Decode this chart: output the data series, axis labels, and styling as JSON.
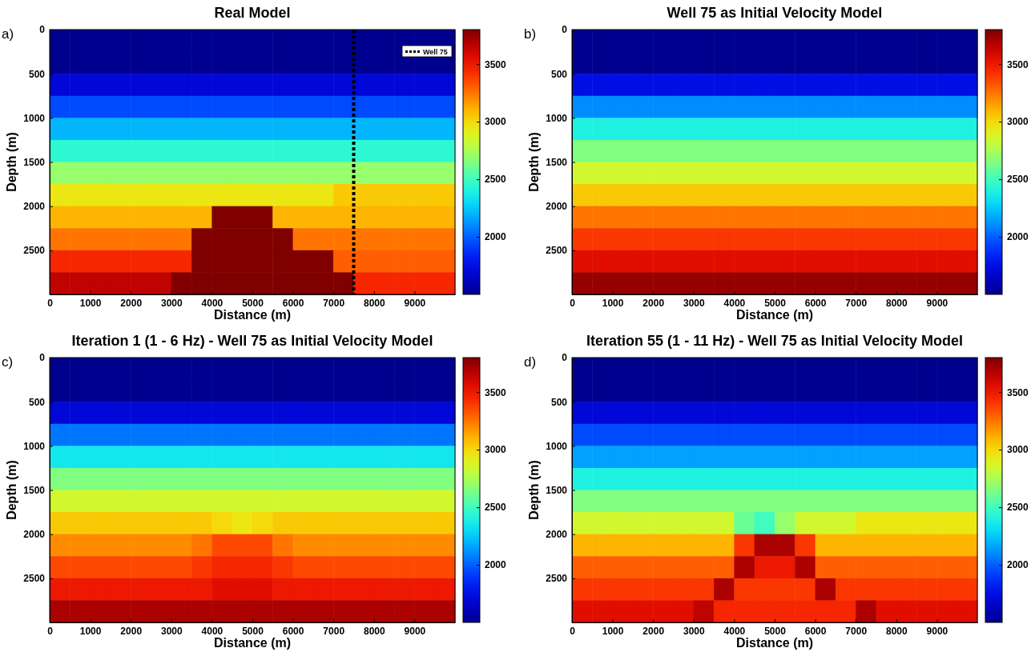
{
  "chart_data": [
    {
      "type": "heatmap",
      "title": "Real Model",
      "xlabel": "Distance (m)",
      "ylabel": "Depth (m)",
      "annotations": [
        "a)"
      ],
      "legend": "top right",
      "ref_lines": [
        {
          "axis": "x",
          "value": 7500,
          "label": "Well 75",
          "color": "#000000",
          "line_style": "dotted"
        }
      ],
      "xlim": [
        0,
        10000
      ],
      "xticks": [
        0,
        1000,
        2000,
        3000,
        4000,
        5000,
        6000,
        7000,
        8000,
        9000
      ],
      "ylim": [
        3000,
        0
      ],
      "yticks": [
        0,
        500,
        1000,
        1500,
        2000,
        2500
      ],
      "clim": [
        1500,
        3800
      ],
      "cticks": [
        2000,
        2500,
        3000,
        3500
      ],
      "cells": [
        [
          1500,
          1500,
          1500,
          1500,
          1500,
          1500,
          1500,
          1500,
          1500,
          1500,
          1500,
          1500,
          1500,
          1500,
          1500,
          1500,
          1500,
          1500,
          1500,
          1500
        ],
        [
          1500,
          1500,
          1500,
          1500,
          1500,
          1500,
          1500,
          1500,
          1500,
          1500,
          1500,
          1500,
          1500,
          1500,
          1500,
          1500,
          1500,
          1500,
          1500,
          1500
        ],
        [
          1700,
          1700,
          1700,
          1700,
          1700,
          1700,
          1700,
          1700,
          1700,
          1700,
          1700,
          1700,
          1700,
          1700,
          1700,
          1700,
          1700,
          1700,
          1700,
          1700
        ],
        [
          1950,
          1950,
          1950,
          1950,
          1950,
          1950,
          1950,
          1950,
          1950,
          1950,
          1950,
          1950,
          1950,
          1950,
          1950,
          1950,
          1950,
          1950,
          1950,
          1950
        ],
        [
          2200,
          2200,
          2200,
          2200,
          2200,
          2200,
          2200,
          2200,
          2200,
          2200,
          2200,
          2200,
          2200,
          2200,
          2200,
          2200,
          2200,
          2200,
          2200,
          2200
        ],
        [
          2450,
          2450,
          2450,
          2450,
          2450,
          2450,
          2450,
          2450,
          2450,
          2450,
          2450,
          2450,
          2450,
          2450,
          2450,
          2450,
          2450,
          2450,
          2450,
          2450
        ],
        [
          2700,
          2700,
          2700,
          2700,
          2700,
          2700,
          2700,
          2700,
          2700,
          2700,
          2700,
          2700,
          2700,
          2700,
          2700,
          2700,
          2700,
          2700,
          2700,
          2700
        ],
        [
          2950,
          2950,
          2950,
          2950,
          2950,
          2950,
          2950,
          2950,
          2950,
          2950,
          2950,
          2950,
          2950,
          2950,
          3050,
          3050,
          3050,
          3050,
          3050,
          3050
        ],
        [
          3100,
          3100,
          3100,
          3100,
          3100,
          3100,
          3100,
          3100,
          3800,
          3800,
          3800,
          3100,
          3100,
          3100,
          3100,
          3100,
          3100,
          3100,
          3100,
          3100
        ],
        [
          3250,
          3250,
          3250,
          3250,
          3250,
          3250,
          3250,
          3800,
          3800,
          3800,
          3800,
          3800,
          3250,
          3250,
          3250,
          3250,
          3250,
          3250,
          3250,
          3250
        ],
        [
          3450,
          3450,
          3450,
          3450,
          3450,
          3450,
          3450,
          3800,
          3800,
          3800,
          3800,
          3800,
          3800,
          3800,
          3300,
          3300,
          3300,
          3300,
          3300,
          3300
        ],
        [
          3650,
          3650,
          3650,
          3650,
          3650,
          3650,
          3800,
          3800,
          3800,
          3800,
          3800,
          3800,
          3800,
          3800,
          3800,
          3450,
          3450,
          3450,
          3450,
          3450
        ]
      ]
    },
    {
      "type": "heatmap",
      "title": "Well 75 as Initial Velocity Model",
      "xlabel": "Distance (m)",
      "ylabel": "Depth (m)",
      "annotations": [
        "b)"
      ],
      "xlim": [
        0,
        10000
      ],
      "xticks": [
        0,
        1000,
        2000,
        3000,
        4000,
        5000,
        6000,
        7000,
        8000,
        9000
      ],
      "ylim": [
        3000,
        0
      ],
      "yticks": [
        0,
        500,
        1000,
        1500,
        2000,
        2500
      ],
      "clim": [
        1500,
        3800
      ],
      "cticks": [
        2000,
        2500,
        3000,
        3500
      ],
      "cells": [
        [
          1500,
          1500,
          1500,
          1500,
          1500,
          1500,
          1500,
          1500,
          1500,
          1500,
          1500,
          1500,
          1500,
          1500,
          1500,
          1500,
          1500,
          1500,
          1500,
          1500
        ],
        [
          1500,
          1500,
          1500,
          1500,
          1500,
          1500,
          1500,
          1500,
          1500,
          1500,
          1500,
          1500,
          1500,
          1500,
          1500,
          1500,
          1500,
          1500,
          1500,
          1500
        ],
        [
          1750,
          1750,
          1750,
          1750,
          1750,
          1750,
          1750,
          1750,
          1750,
          1750,
          1750,
          1750,
          1750,
          1750,
          1750,
          1750,
          1750,
          1750,
          1750,
          1750
        ],
        [
          2100,
          2100,
          2100,
          2100,
          2100,
          2100,
          2100,
          2100,
          2100,
          2100,
          2100,
          2100,
          2100,
          2100,
          2100,
          2100,
          2100,
          2100,
          2100,
          2100
        ],
        [
          2400,
          2400,
          2400,
          2400,
          2400,
          2400,
          2400,
          2400,
          2400,
          2400,
          2400,
          2400,
          2400,
          2400,
          2400,
          2400,
          2400,
          2400,
          2400,
          2400
        ],
        [
          2650,
          2650,
          2650,
          2650,
          2650,
          2650,
          2650,
          2650,
          2650,
          2650,
          2650,
          2650,
          2650,
          2650,
          2650,
          2650,
          2650,
          2650,
          2650,
          2650
        ],
        [
          2850,
          2850,
          2850,
          2850,
          2850,
          2850,
          2850,
          2850,
          2850,
          2850,
          2850,
          2850,
          2850,
          2850,
          2850,
          2850,
          2850,
          2850,
          2850,
          2850
        ],
        [
          3050,
          3050,
          3050,
          3050,
          3050,
          3050,
          3050,
          3050,
          3050,
          3050,
          3050,
          3050,
          3050,
          3050,
          3050,
          3050,
          3050,
          3050,
          3050,
          3050
        ],
        [
          3250,
          3250,
          3250,
          3250,
          3250,
          3250,
          3250,
          3250,
          3250,
          3250,
          3250,
          3250,
          3250,
          3250,
          3250,
          3250,
          3250,
          3250,
          3250,
          3250
        ],
        [
          3400,
          3400,
          3400,
          3400,
          3400,
          3400,
          3400,
          3400,
          3400,
          3400,
          3400,
          3400,
          3400,
          3400,
          3400,
          3400,
          3400,
          3400,
          3400,
          3400
        ],
        [
          3550,
          3550,
          3550,
          3550,
          3550,
          3550,
          3550,
          3550,
          3550,
          3550,
          3550,
          3550,
          3550,
          3550,
          3550,
          3550,
          3550,
          3550,
          3550,
          3550
        ],
        [
          3750,
          3750,
          3750,
          3750,
          3750,
          3750,
          3750,
          3750,
          3750,
          3750,
          3750,
          3750,
          3750,
          3750,
          3750,
          3750,
          3750,
          3750,
          3750,
          3750
        ]
      ]
    },
    {
      "type": "heatmap",
      "title": "Iteration 1 (1 - 6 Hz) - Well 75 as Initial Velocity Model",
      "xlabel": "Distance (m)",
      "ylabel": "Depth (m)",
      "annotations": [
        "c)"
      ],
      "xlim": [
        0,
        10000
      ],
      "xticks": [
        0,
        1000,
        2000,
        3000,
        4000,
        5000,
        6000,
        7000,
        8000,
        9000
      ],
      "ylim": [
        3000,
        0
      ],
      "yticks": [
        0,
        500,
        1000,
        1500,
        2000,
        2500
      ],
      "clim": [
        1500,
        3800
      ],
      "cticks": [
        2000,
        2500,
        3000,
        3500
      ],
      "cells": [
        [
          1500,
          1500,
          1500,
          1500,
          1500,
          1500,
          1500,
          1500,
          1500,
          1500,
          1500,
          1500,
          1500,
          1500,
          1500,
          1500,
          1500,
          1500,
          1500,
          1500
        ],
        [
          1500,
          1500,
          1500,
          1500,
          1500,
          1500,
          1500,
          1500,
          1500,
          1500,
          1500,
          1500,
          1500,
          1500,
          1500,
          1500,
          1500,
          1500,
          1500,
          1500
        ],
        [
          1700,
          1700,
          1700,
          1700,
          1700,
          1700,
          1700,
          1700,
          1700,
          1700,
          1700,
          1700,
          1700,
          1700,
          1700,
          1700,
          1700,
          1700,
          1700,
          1700
        ],
        [
          2050,
          2050,
          2050,
          2050,
          2050,
          2050,
          2050,
          2050,
          2050,
          2050,
          2050,
          2050,
          2050,
          2050,
          2050,
          2050,
          2050,
          2050,
          2050,
          2050
        ],
        [
          2350,
          2350,
          2350,
          2350,
          2350,
          2350,
          2350,
          2350,
          2350,
          2350,
          2350,
          2350,
          2350,
          2350,
          2350,
          2350,
          2350,
          2350,
          2350,
          2350
        ],
        [
          2650,
          2650,
          2650,
          2650,
          2650,
          2650,
          2650,
          2650,
          2650,
          2650,
          2650,
          2650,
          2650,
          2650,
          2650,
          2650,
          2650,
          2650,
          2650,
          2650
        ],
        [
          2850,
          2850,
          2850,
          2850,
          2850,
          2850,
          2850,
          2850,
          2850,
          2850,
          2850,
          2850,
          2850,
          2850,
          2850,
          2850,
          2850,
          2850,
          2850,
          2850
        ],
        [
          3050,
          3050,
          3050,
          3050,
          3050,
          3050,
          3050,
          3050,
          3000,
          2950,
          3000,
          3050,
          3050,
          3050,
          3050,
          3050,
          3050,
          3050,
          3050,
          3050
        ],
        [
          3200,
          3200,
          3200,
          3200,
          3200,
          3200,
          3200,
          3250,
          3350,
          3350,
          3350,
          3250,
          3200,
          3200,
          3200,
          3200,
          3200,
          3200,
          3200,
          3200
        ],
        [
          3350,
          3350,
          3350,
          3350,
          3350,
          3350,
          3350,
          3400,
          3450,
          3450,
          3450,
          3400,
          3350,
          3350,
          3350,
          3350,
          3350,
          3350,
          3350,
          3350
        ],
        [
          3500,
          3500,
          3500,
          3500,
          3500,
          3500,
          3500,
          3500,
          3550,
          3550,
          3550,
          3500,
          3500,
          3500,
          3500,
          3500,
          3500,
          3500,
          3500,
          3500
        ],
        [
          3700,
          3700,
          3700,
          3700,
          3700,
          3700,
          3700,
          3700,
          3700,
          3700,
          3700,
          3700,
          3700,
          3700,
          3700,
          3700,
          3700,
          3700,
          3700,
          3700
        ]
      ]
    },
    {
      "type": "heatmap",
      "title": "Iteration 55 (1 - 11 Hz) - Well 75 as Initial Velocity Model",
      "xlabel": "Distance (m)",
      "ylabel": "Depth (m)",
      "annotations": [
        "d)"
      ],
      "xlim": [
        0,
        10000
      ],
      "xticks": [
        0,
        1000,
        2000,
        3000,
        4000,
        5000,
        6000,
        7000,
        8000,
        9000
      ],
      "ylim": [
        3000,
        0
      ],
      "yticks": [
        0,
        500,
        1000,
        1500,
        2000,
        2500
      ],
      "clim": [
        1500,
        3800
      ],
      "cticks": [
        2000,
        2500,
        3000,
        3500
      ],
      "cells": [
        [
          1500,
          1500,
          1500,
          1500,
          1500,
          1500,
          1500,
          1500,
          1500,
          1500,
          1500,
          1500,
          1500,
          1500,
          1500,
          1500,
          1500,
          1500,
          1500,
          1500
        ],
        [
          1500,
          1500,
          1500,
          1500,
          1500,
          1500,
          1500,
          1500,
          1500,
          1500,
          1500,
          1500,
          1500,
          1500,
          1500,
          1500,
          1500,
          1500,
          1500,
          1500
        ],
        [
          1700,
          1700,
          1700,
          1700,
          1700,
          1700,
          1700,
          1700,
          1700,
          1700,
          1700,
          1700,
          1700,
          1700,
          1700,
          1700,
          1700,
          1700,
          1700,
          1700
        ],
        [
          1950,
          1950,
          1950,
          1950,
          1950,
          1950,
          1950,
          1950,
          1950,
          1950,
          1950,
          1950,
          1950,
          1950,
          1950,
          1950,
          1950,
          1950,
          1950,
          1950
        ],
        [
          2150,
          2150,
          2150,
          2150,
          2150,
          2150,
          2150,
          2150,
          2150,
          2150,
          2150,
          2150,
          2150,
          2150,
          2150,
          2150,
          2150,
          2150,
          2150,
          2150
        ],
        [
          2400,
          2400,
          2400,
          2400,
          2400,
          2400,
          2400,
          2400,
          2400,
          2400,
          2400,
          2400,
          2400,
          2400,
          2400,
          2400,
          2400,
          2400,
          2400,
          2400
        ],
        [
          2650,
          2650,
          2650,
          2650,
          2650,
          2650,
          2650,
          2650,
          2650,
          2650,
          2650,
          2650,
          2650,
          2650,
          2650,
          2650,
          2650,
          2650,
          2650,
          2650
        ],
        [
          2850,
          2850,
          2850,
          2850,
          2850,
          2850,
          2850,
          2850,
          2600,
          2500,
          2700,
          2850,
          2850,
          2850,
          2950,
          2950,
          2950,
          2950,
          2950,
          2950
        ],
        [
          3100,
          3100,
          3100,
          3100,
          3100,
          3100,
          3100,
          3100,
          3400,
          3700,
          3700,
          3400,
          3100,
          3100,
          3100,
          3100,
          3100,
          3100,
          3100,
          3100
        ],
        [
          3300,
          3300,
          3300,
          3300,
          3300,
          3300,
          3300,
          3300,
          3700,
          3500,
          3500,
          3700,
          3300,
          3300,
          3300,
          3300,
          3300,
          3300,
          3300,
          3300
        ],
        [
          3400,
          3400,
          3400,
          3400,
          3400,
          3400,
          3400,
          3700,
          3400,
          3400,
          3400,
          3400,
          3700,
          3400,
          3400,
          3400,
          3400,
          3400,
          3400,
          3400
        ],
        [
          3550,
          3550,
          3550,
          3550,
          3550,
          3550,
          3650,
          3450,
          3450,
          3450,
          3450,
          3450,
          3450,
          3450,
          3700,
          3550,
          3550,
          3550,
          3550,
          3550
        ]
      ]
    }
  ]
}
